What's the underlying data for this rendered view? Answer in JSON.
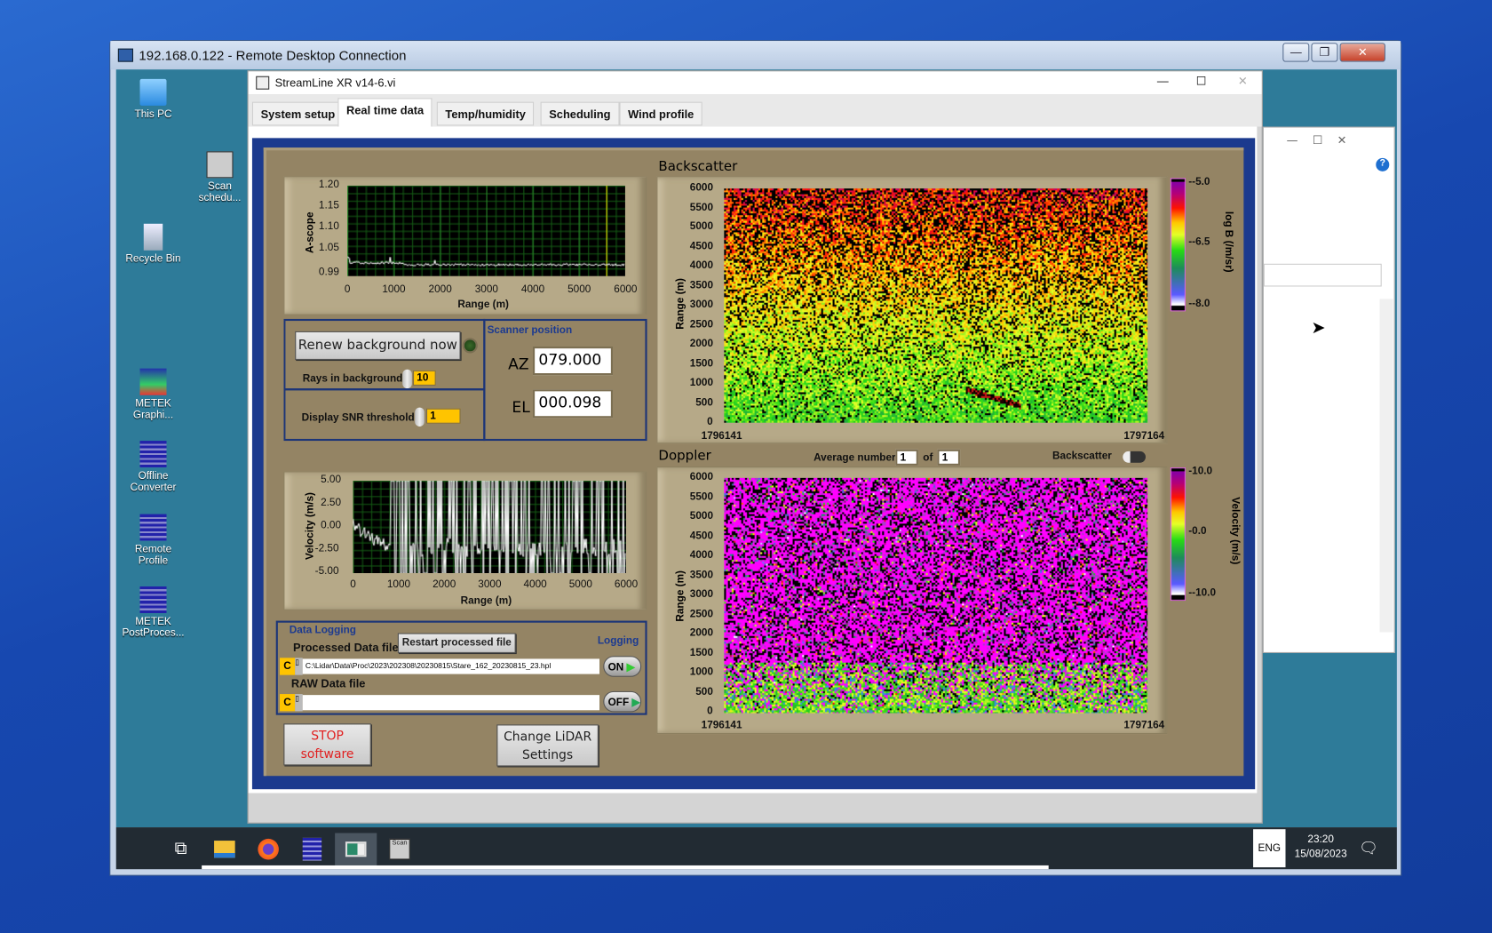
{
  "rdp": {
    "title": "192.168.0.122 - Remote Desktop Connection",
    "controls": [
      "—",
      "❐",
      "✕"
    ]
  },
  "desktop": {
    "icons": [
      {
        "label": "This PC",
        "icon": "computer-icon"
      },
      {
        "label": "Scan schedu...",
        "icon": "scan-schedule-icon"
      },
      {
        "label": "Recycle Bin",
        "icon": "recycle-bin-icon"
      },
      {
        "label": "METEK Graphi...",
        "icon": "metek-icon"
      },
      {
        "label": "Offline Converter",
        "icon": "metek-icon"
      },
      {
        "label": "Remote Profile",
        "icon": "metek-icon"
      },
      {
        "label": "METEK PostProces...",
        "icon": "metek-icon"
      }
    ]
  },
  "taskbar": {
    "lang": "ENG",
    "time": "23:20",
    "date": "15/08/2023",
    "apps": [
      "task-view-icon",
      "file-explorer-icon",
      "firefox-icon",
      "metek-icon",
      "streamline-icon",
      "scan-schedule-icon"
    ]
  },
  "app": {
    "title": "StreamLine XR v14-6.vi",
    "controls": [
      "—",
      "☐",
      "✕"
    ],
    "tabs": [
      {
        "label": "System setup"
      },
      {
        "label": "Real time data",
        "active": true
      },
      {
        "label": "Temp/humidity"
      },
      {
        "label": "Scheduling"
      },
      {
        "label": "Wind profile"
      }
    ]
  },
  "ascope": {
    "ylabel": "A-scope",
    "xlabel": "Range (m)",
    "yticks": [
      "1.20",
      "1.15",
      "1.10",
      "1.05",
      "0.99"
    ],
    "xticks": [
      "0",
      "1000",
      "2000",
      "3000",
      "4000",
      "5000",
      "6000"
    ],
    "cursor_x": 5600
  },
  "background": {
    "renew_label": "Renew background now",
    "rays_label": "Rays in background",
    "rays_value": "10",
    "snr_label": "Display SNR threshold",
    "snr_value": "1"
  },
  "scanner": {
    "title": "Scanner position",
    "az_label": "AZ",
    "az_value": "079.000",
    "el_label": "EL",
    "el_value": "000.098"
  },
  "velocity": {
    "ylabel": "Velocity (m/s)",
    "xlabel": "Range (m)",
    "yticks": [
      "5.00",
      "2.50",
      "0.00",
      "-2.50",
      "-5.00"
    ],
    "xticks": [
      "0",
      "1000",
      "2000",
      "3000",
      "4000",
      "5000",
      "6000"
    ]
  },
  "logging": {
    "title": "Data Logging",
    "processed_label": "Processed Data file",
    "restart_label": "Restart processed file",
    "logging_label": "Logging",
    "drive": "C",
    "processed_path": "C:\\Lidar\\Data\\Proc\\2023\\202308\\20230815\\Stare_162_20230815_23.hpl",
    "processed_state": "ON",
    "raw_label": "RAW Data file",
    "raw_path": "",
    "raw_state": "OFF"
  },
  "buttons": {
    "stop": "STOP software",
    "change": "Change LiDAR Settings"
  },
  "backscatter": {
    "title": "Backscatter",
    "ylabel": "Range (m)",
    "yticks": [
      "6000",
      "5500",
      "5000",
      "4500",
      "4000",
      "3500",
      "3000",
      "2500",
      "2000",
      "1500",
      "1000",
      "500",
      "0"
    ],
    "x_start": "1796141",
    "x_end": "1797164",
    "cbar_label": "log B (/m/sr)",
    "cbar_ticks": [
      "-5.0",
      "-6.5",
      "-8.0"
    ]
  },
  "doppler": {
    "title": "Doppler",
    "avg_label": "Average number",
    "avg_value": "1",
    "of_label": "of",
    "of_value": "1",
    "switch_label": "Backscatter",
    "ylabel": "Range (m)",
    "yticks": [
      "6000",
      "5500",
      "5000",
      "4500",
      "4000",
      "3500",
      "3000",
      "2500",
      "2000",
      "1500",
      "1000",
      "500",
      "0"
    ],
    "x_start": "1796141",
    "x_end": "1797164",
    "cbar_label": "Velocity (m/s)",
    "cbar_ticks": [
      "10.0",
      "0.0",
      "-10.0"
    ]
  }
}
